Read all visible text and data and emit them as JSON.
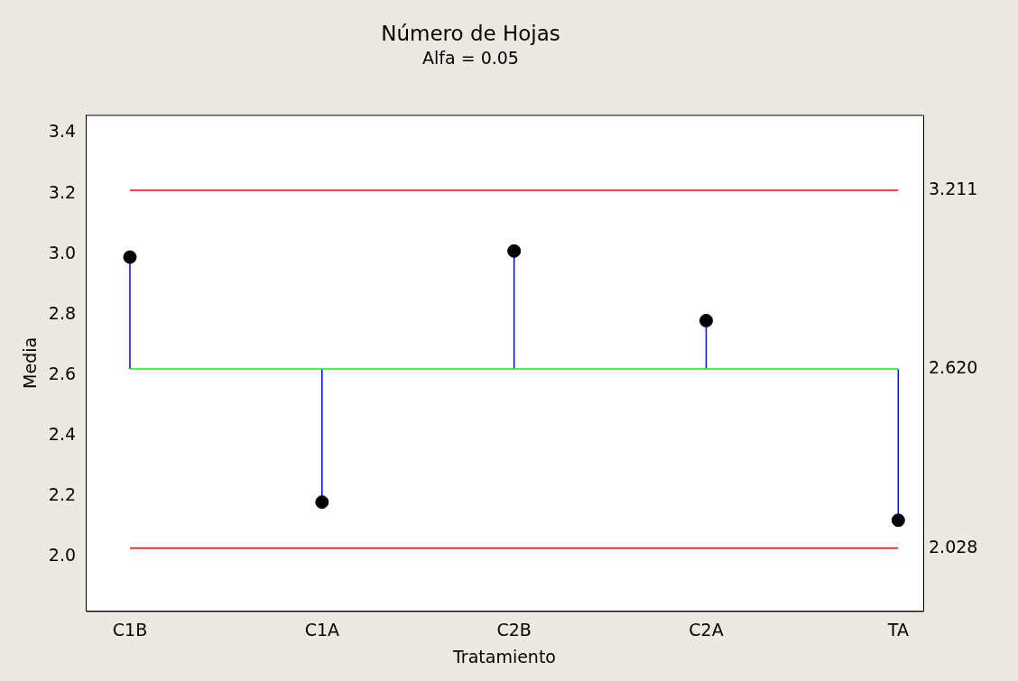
{
  "chart_data": {
    "type": "scatter",
    "title": "Número de Hojas",
    "subtitle": "Alfa = 0.05",
    "xlabel": "Tratamiento",
    "ylabel": "Media",
    "categories": [
      "C1B",
      "C1A",
      "C2B",
      "C2A",
      "TA"
    ],
    "series": [
      {
        "color": "#000000",
        "values": [
          2.99,
          2.18,
          3.01,
          2.78,
          2.12
        ],
        "errors": [
          [
            2.62,
            2.99
          ],
          [
            2.18,
            2.62
          ],
          [
            2.62,
            3.01
          ],
          [
            2.62,
            2.78
          ],
          [
            2.12,
            2.62
          ]
        ]
      }
    ],
    "ylim": [
      1.82,
      3.46
    ],
    "yticks": [
      {
        "value": 2,
        "label": "2.0"
      },
      {
        "value": 2.2,
        "label": "2.2"
      },
      {
        "value": 2.4,
        "label": "2.4"
      },
      {
        "value": 2.6,
        "label": "2.6"
      },
      {
        "value": 2.8,
        "label": "2.8"
      },
      {
        "value": 3,
        "label": "3.0"
      },
      {
        "value": 3.2,
        "label": "3.2"
      },
      {
        "value": 3.4,
        "label": "3.4"
      }
    ],
    "ref_lines": [
      {
        "axis": "y",
        "value": 3.211,
        "label": "3.211",
        "color": "#ff0000"
      },
      {
        "axis": "y",
        "value": 2.62,
        "label": "2.620",
        "color": "#00ff00"
      },
      {
        "axis": "y",
        "value": 2.028,
        "label": "2.028",
        "color": "#ff0000"
      }
    ],
    "grid": false,
    "legend": false,
    "marker": "circle"
  }
}
